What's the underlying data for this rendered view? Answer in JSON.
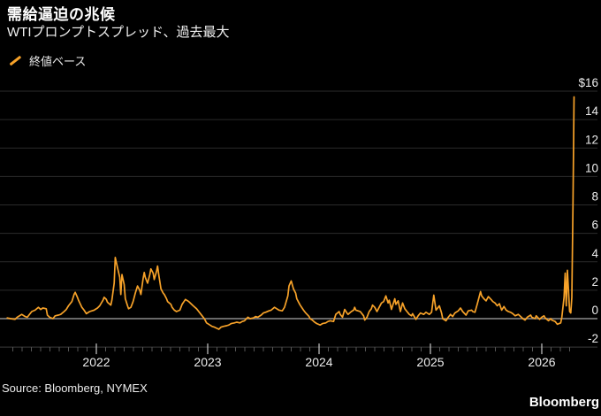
{
  "header": {
    "title": "需給逼迫の兆候",
    "subtitle": "WTIプロンプトスプレッド、過去最大"
  },
  "legend": {
    "label": "終値ベース",
    "marker": "orange-slash"
  },
  "footer": {
    "source": "Source: Bloomberg, NYMEX",
    "logo": "Bloomberg"
  },
  "colors": {
    "background": "#000000",
    "line": "#F7A229",
    "grid": "#2B2B2B",
    "zero_line": "#8C8C8C",
    "axis_line": "#3D3D3D",
    "tick_minor": "#555555",
    "tick_major": "#C9C9C9",
    "label_text": "#ECECEC"
  },
  "chart_data": {
    "type": "line",
    "title": "需給逼迫の兆候",
    "subtitle": "WTIプロンプトスプレッド、過去最大",
    "ylabel": "USD",
    "xlabel": "",
    "grid": "horizontal",
    "legend_position": "top-left",
    "ylim": [
      -2,
      16
    ],
    "xlim": [
      2021.2,
      2026.3
    ],
    "y_ticks": [
      16,
      14,
      12,
      10,
      8,
      6,
      4,
      2,
      0,
      -2
    ],
    "y_tick_labels": [
      "$16",
      "14",
      "12",
      "10",
      "8",
      "6",
      "4",
      "2",
      "0",
      "-2"
    ],
    "x_ticks": [
      2022,
      2023,
      2024,
      2025,
      2026
    ],
    "x_tick_labels": [
      "2022",
      "2023",
      "2024",
      "2025",
      "2026"
    ],
    "series": [
      {
        "name": "終値ベース",
        "color": "#F7A229",
        "points": [
          [
            2021.2,
            0.05
          ],
          [
            2021.23,
            0.0
          ],
          [
            2021.27,
            -0.05
          ],
          [
            2021.29,
            0.1
          ],
          [
            2021.33,
            0.3
          ],
          [
            2021.36,
            0.15
          ],
          [
            2021.38,
            0.1
          ],
          [
            2021.42,
            0.5
          ],
          [
            2021.45,
            0.6
          ],
          [
            2021.48,
            0.8
          ],
          [
            2021.5,
            0.65
          ],
          [
            2021.52,
            0.75
          ],
          [
            2021.55,
            0.7
          ],
          [
            2021.56,
            0.25
          ],
          [
            2021.58,
            0.1
          ],
          [
            2021.61,
            0.0
          ],
          [
            2021.63,
            0.2
          ],
          [
            2021.66,
            0.25
          ],
          [
            2021.68,
            0.3
          ],
          [
            2021.71,
            0.5
          ],
          [
            2021.73,
            0.65
          ],
          [
            2021.75,
            0.9
          ],
          [
            2021.78,
            1.2
          ],
          [
            2021.8,
            1.7
          ],
          [
            2021.81,
            1.85
          ],
          [
            2021.83,
            1.5
          ],
          [
            2021.84,
            1.3
          ],
          [
            2021.87,
            0.8
          ],
          [
            2021.89,
            0.6
          ],
          [
            2021.91,
            0.35
          ],
          [
            2021.94,
            0.5
          ],
          [
            2021.96,
            0.55
          ],
          [
            2021.98,
            0.6
          ],
          [
            2022.01,
            0.75
          ],
          [
            2022.03,
            0.9
          ],
          [
            2022.06,
            1.3
          ],
          [
            2022.07,
            1.5
          ],
          [
            2022.09,
            1.35
          ],
          [
            2022.1,
            1.15
          ],
          [
            2022.13,
            0.95
          ],
          [
            2022.14,
            1.3
          ],
          [
            2022.16,
            2.5
          ],
          [
            2022.17,
            4.3
          ],
          [
            2022.19,
            3.6
          ],
          [
            2022.21,
            2.9
          ],
          [
            2022.22,
            1.7
          ],
          [
            2022.23,
            3.1
          ],
          [
            2022.25,
            2.4
          ],
          [
            2022.26,
            1.4
          ],
          [
            2022.28,
            0.9
          ],
          [
            2022.29,
            0.7
          ],
          [
            2022.31,
            0.8
          ],
          [
            2022.33,
            1.2
          ],
          [
            2022.35,
            1.8
          ],
          [
            2022.37,
            2.3
          ],
          [
            2022.39,
            2.0
          ],
          [
            2022.4,
            1.7
          ],
          [
            2022.42,
            2.8
          ],
          [
            2022.43,
            3.25
          ],
          [
            2022.44,
            2.9
          ],
          [
            2022.46,
            2.5
          ],
          [
            2022.48,
            3.1
          ],
          [
            2022.49,
            3.5
          ],
          [
            2022.51,
            3.2
          ],
          [
            2022.52,
            2.75
          ],
          [
            2022.54,
            3.3
          ],
          [
            2022.55,
            3.7
          ],
          [
            2022.56,
            3.1
          ],
          [
            2022.58,
            2.1
          ],
          [
            2022.6,
            1.8
          ],
          [
            2022.61,
            1.7
          ],
          [
            2022.63,
            1.4
          ],
          [
            2022.64,
            1.2
          ],
          [
            2022.67,
            1.0
          ],
          [
            2022.68,
            0.8
          ],
          [
            2022.7,
            0.6
          ],
          [
            2022.72,
            0.5
          ],
          [
            2022.75,
            0.6
          ],
          [
            2022.77,
            1.0
          ],
          [
            2022.8,
            1.35
          ],
          [
            2022.83,
            1.2
          ],
          [
            2022.85,
            1.05
          ],
          [
            2022.87,
            0.9
          ],
          [
            2022.9,
            0.7
          ],
          [
            2022.92,
            0.5
          ],
          [
            2022.94,
            0.3
          ],
          [
            2022.97,
            0.0
          ],
          [
            2022.99,
            -0.3
          ],
          [
            2023.02,
            -0.45
          ],
          [
            2023.04,
            -0.55
          ],
          [
            2023.06,
            -0.6
          ],
          [
            2023.1,
            -0.75
          ],
          [
            2023.12,
            -0.6
          ],
          [
            2023.14,
            -0.55
          ],
          [
            2023.17,
            -0.5
          ],
          [
            2023.19,
            -0.45
          ],
          [
            2023.21,
            -0.35
          ],
          [
            2023.24,
            -0.3
          ],
          [
            2023.26,
            -0.25
          ],
          [
            2023.29,
            -0.3
          ],
          [
            2023.31,
            -0.2
          ],
          [
            2023.33,
            -0.15
          ],
          [
            2023.36,
            0.1
          ],
          [
            2023.38,
            0.0
          ],
          [
            2023.41,
            0.05
          ],
          [
            2023.43,
            0.15
          ],
          [
            2023.45,
            0.1
          ],
          [
            2023.48,
            0.25
          ],
          [
            2023.5,
            0.4
          ],
          [
            2023.52,
            0.45
          ],
          [
            2023.55,
            0.55
          ],
          [
            2023.57,
            0.6
          ],
          [
            2023.6,
            0.8
          ],
          [
            2023.62,
            0.7
          ],
          [
            2023.64,
            0.6
          ],
          [
            2023.67,
            0.55
          ],
          [
            2023.69,
            0.8
          ],
          [
            2023.72,
            1.6
          ],
          [
            2023.73,
            2.3
          ],
          [
            2023.75,
            2.65
          ],
          [
            2023.77,
            2.1
          ],
          [
            2023.79,
            1.8
          ],
          [
            2023.8,
            1.4
          ],
          [
            2023.82,
            1.1
          ],
          [
            2023.83,
            0.95
          ],
          [
            2023.86,
            0.6
          ],
          [
            2023.88,
            0.4
          ],
          [
            2023.91,
            0.15
          ],
          [
            2023.92,
            0.0
          ],
          [
            2023.94,
            -0.1
          ],
          [
            2023.96,
            -0.25
          ],
          [
            2023.98,
            -0.35
          ],
          [
            2024.01,
            -0.45
          ],
          [
            2024.03,
            -0.35
          ],
          [
            2024.06,
            -0.3
          ],
          [
            2024.08,
            -0.2
          ],
          [
            2024.1,
            -0.15
          ],
          [
            2024.13,
            -0.2
          ],
          [
            2024.15,
            0.3
          ],
          [
            2024.18,
            0.5
          ],
          [
            2024.19,
            0.3
          ],
          [
            2024.21,
            0.1
          ],
          [
            2024.23,
            0.65
          ],
          [
            2024.25,
            0.4
          ],
          [
            2024.26,
            0.3
          ],
          [
            2024.29,
            0.5
          ],
          [
            2024.31,
            0.6
          ],
          [
            2024.32,
            0.8
          ],
          [
            2024.33,
            0.6
          ],
          [
            2024.35,
            0.55
          ],
          [
            2024.37,
            0.5
          ],
          [
            2024.4,
            0.2
          ],
          [
            2024.41,
            -0.1
          ],
          [
            2024.43,
            0.1
          ],
          [
            2024.45,
            0.5
          ],
          [
            2024.47,
            0.7
          ],
          [
            2024.48,
            0.95
          ],
          [
            2024.5,
            0.8
          ],
          [
            2024.52,
            0.5
          ],
          [
            2024.54,
            0.8
          ],
          [
            2024.56,
            1.1
          ],
          [
            2024.58,
            1.2
          ],
          [
            2024.6,
            1.6
          ],
          [
            2024.62,
            1.1
          ],
          [
            2024.63,
            1.3
          ],
          [
            2024.65,
            0.65
          ],
          [
            2024.68,
            1.4
          ],
          [
            2024.69,
            1.0
          ],
          [
            2024.71,
            1.25
          ],
          [
            2024.73,
            0.5
          ],
          [
            2024.75,
            1.1
          ],
          [
            2024.77,
            0.7
          ],
          [
            2024.79,
            0.5
          ],
          [
            2024.81,
            0.3
          ],
          [
            2024.83,
            0.2
          ],
          [
            2024.84,
            0.35
          ],
          [
            2024.87,
            -0.05
          ],
          [
            2024.89,
            0.2
          ],
          [
            2024.91,
            0.4
          ],
          [
            2024.94,
            0.3
          ],
          [
            2024.96,
            0.45
          ],
          [
            2024.99,
            0.3
          ],
          [
            2025.01,
            0.45
          ],
          [
            2025.03,
            1.65
          ],
          [
            2025.05,
            0.6
          ],
          [
            2025.06,
            0.7
          ],
          [
            2025.08,
            0.9
          ],
          [
            2025.1,
            0.4
          ],
          [
            2025.11,
            0.0
          ],
          [
            2025.14,
            -0.15
          ],
          [
            2025.16,
            0.1
          ],
          [
            2025.18,
            0.3
          ],
          [
            2025.2,
            0.15
          ],
          [
            2025.22,
            0.4
          ],
          [
            2025.25,
            0.55
          ],
          [
            2025.27,
            0.75
          ],
          [
            2025.29,
            0.5
          ],
          [
            2025.32,
            0.25
          ],
          [
            2025.34,
            0.55
          ],
          [
            2025.37,
            0.6
          ],
          [
            2025.38,
            0.5
          ],
          [
            2025.4,
            0.45
          ],
          [
            2025.42,
            1.0
          ],
          [
            2025.45,
            1.9
          ],
          [
            2025.46,
            1.6
          ],
          [
            2025.48,
            1.4
          ],
          [
            2025.5,
            1.25
          ],
          [
            2025.52,
            1.55
          ],
          [
            2025.55,
            1.3
          ],
          [
            2025.56,
            1.2
          ],
          [
            2025.58,
            1.1
          ],
          [
            2025.6,
            0.9
          ],
          [
            2025.62,
            1.05
          ],
          [
            2025.64,
            0.6
          ],
          [
            2025.66,
            0.85
          ],
          [
            2025.68,
            0.6
          ],
          [
            2025.7,
            0.5
          ],
          [
            2025.72,
            0.45
          ],
          [
            2025.74,
            0.35
          ],
          [
            2025.76,
            0.2
          ],
          [
            2025.79,
            0.3
          ],
          [
            2025.81,
            0.15
          ],
          [
            2025.83,
            0.0
          ],
          [
            2025.85,
            -0.1
          ],
          [
            2025.87,
            0.1
          ],
          [
            2025.9,
            0.25
          ],
          [
            2025.91,
            0.1
          ],
          [
            2025.94,
            0.0
          ],
          [
            2025.95,
            0.2
          ],
          [
            2025.98,
            -0.05
          ],
          [
            2026.0,
            0.1
          ],
          [
            2026.02,
            0.2
          ],
          [
            2026.03,
            0.05
          ],
          [
            2026.06,
            -0.15
          ],
          [
            2026.08,
            0.0
          ],
          [
            2026.09,
            -0.1
          ],
          [
            2026.12,
            -0.2
          ],
          [
            2026.14,
            -0.4
          ],
          [
            2026.17,
            -0.3
          ],
          [
            2026.18,
            0.1
          ],
          [
            2026.2,
            1.5
          ],
          [
            2026.21,
            3.2
          ],
          [
            2026.22,
            0.9
          ],
          [
            2026.23,
            3.4
          ],
          [
            2026.24,
            2.0
          ],
          [
            2026.25,
            0.5
          ],
          [
            2026.26,
            0.4
          ],
          [
            2026.27,
            1.5
          ],
          [
            2026.28,
            8.0
          ],
          [
            2026.29,
            15.6
          ]
        ]
      }
    ]
  }
}
